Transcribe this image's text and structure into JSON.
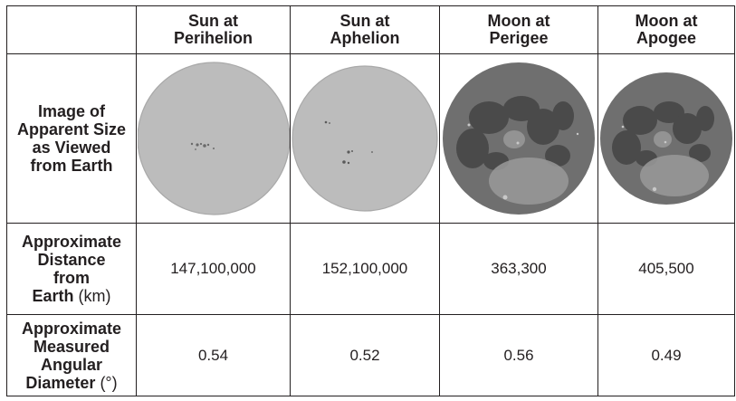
{
  "columns": [
    {
      "line1": "Sun at",
      "line2": "Perihelion"
    },
    {
      "line1": "Sun at",
      "line2": "Aphelion"
    },
    {
      "line1": "Moon at",
      "line2": "Perigee"
    },
    {
      "line1": "Moon at",
      "line2": "Apogee"
    }
  ],
  "rows": {
    "image": {
      "label_lines": [
        "Image of",
        "Apparent Size",
        "as Viewed",
        "from Earth"
      ]
    },
    "distance": {
      "label_lines": [
        "Approximate",
        "Distance",
        "from"
      ],
      "label_last": "Earth",
      "label_unit": "(km)",
      "values": [
        "147,100,000",
        "152,100,000",
        "363,300",
        "405,500"
      ]
    },
    "angular": {
      "label_lines": [
        "Approximate",
        "Measured",
        "Angular"
      ],
      "label_last": "Diameter",
      "label_unit": "(°)",
      "values": [
        "0.54",
        "0.52",
        "0.56",
        "0.49"
      ]
    }
  },
  "images": [
    {
      "icon": "sun-disc-icon",
      "body": "sun",
      "relative_size": 0.54
    },
    {
      "icon": "sun-disc-icon",
      "body": "sun",
      "relative_size": 0.52
    },
    {
      "icon": "moon-disc-icon",
      "body": "moon",
      "relative_size": 0.56
    },
    {
      "icon": "moon-disc-icon",
      "body": "moon",
      "relative_size": 0.49
    }
  ],
  "colors": {
    "sun_fill": "#bcbcbc",
    "sun_edge": "#a9a9a9",
    "moon_fill": "#6f6f6f",
    "moon_mare": "#4a4a4a",
    "moon_highland": "#9a9a9a",
    "border": "#231f20"
  }
}
